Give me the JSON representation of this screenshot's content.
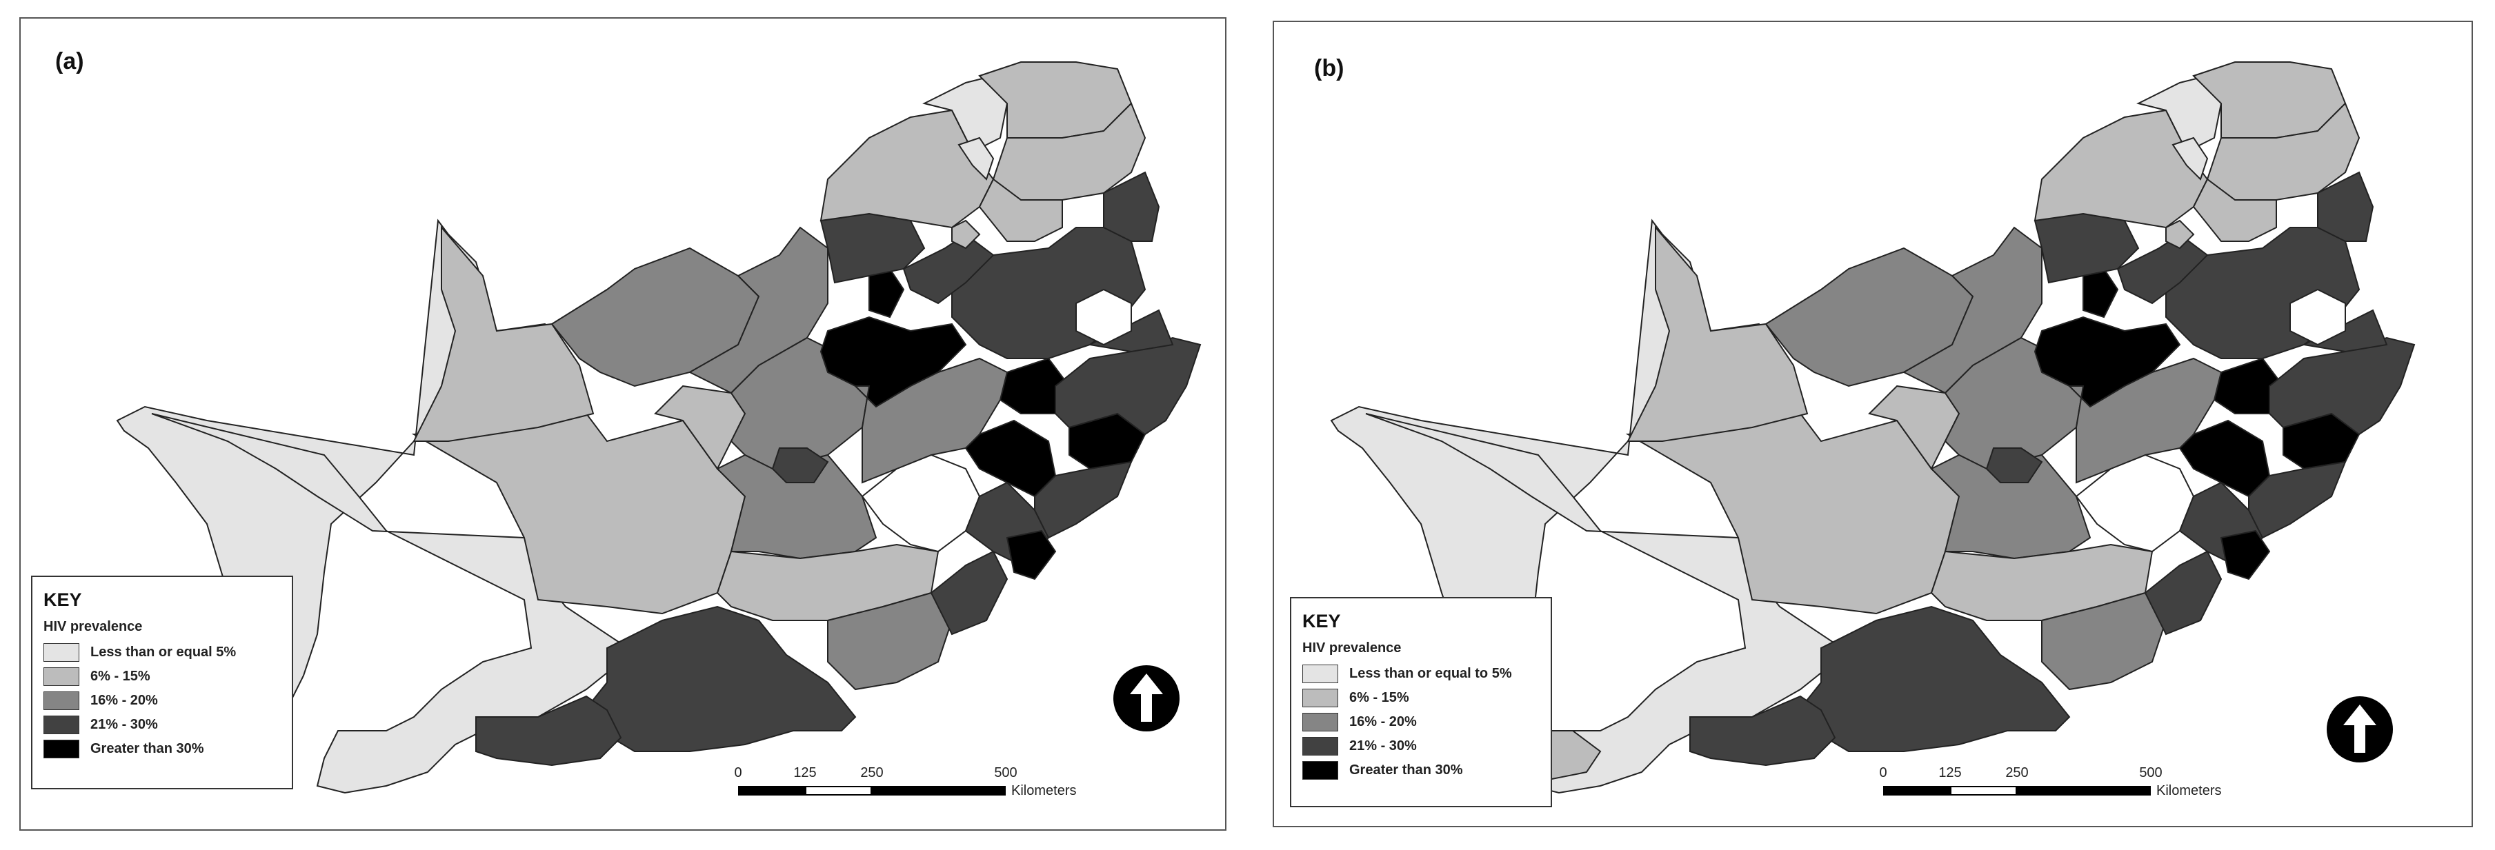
{
  "colors": {
    "class1": "#e4e4e4",
    "class2": "#bcbcbc",
    "class3": "#858585",
    "class4": "#414141",
    "class5": "#000000"
  },
  "panel_a": {
    "label": "(a)",
    "key": {
      "title": "KEY",
      "subtitle": "HIV prevalence",
      "items": [
        {
          "label": "Less than or equal 5%",
          "color": "#e4e4e4"
        },
        {
          "label": "6% - 15%",
          "color": "#bcbcbc"
        },
        {
          "label": "16% - 20%",
          "color": "#858585"
        },
        {
          "label": "21% - 30%",
          "color": "#414141"
        },
        {
          "label": "Greater than 30%",
          "color": "#000000"
        }
      ]
    },
    "scale": {
      "ticks": [
        "0",
        "125",
        "250",
        "500"
      ],
      "unit": "Kilometers"
    },
    "north_icon": "north-arrow-icon"
  },
  "panel_b": {
    "label": "(b)",
    "key": {
      "title": "KEY",
      "subtitle": "HIV prevalence",
      "items": [
        {
          "label": "Less than or equal to 5%",
          "color": "#e4e4e4"
        },
        {
          "label": "6% - 15%",
          "color": "#bcbcbc"
        },
        {
          "label": "16% - 20%",
          "color": "#858585"
        },
        {
          "label": "21% - 30%",
          "color": "#414141"
        },
        {
          "label": "Greater than 30%",
          "color": "#000000"
        }
      ]
    },
    "scale": {
      "ticks": [
        "0",
        "125",
        "250",
        "500"
      ],
      "unit": "Kilometers"
    },
    "north_icon": "north-arrow-icon"
  }
}
